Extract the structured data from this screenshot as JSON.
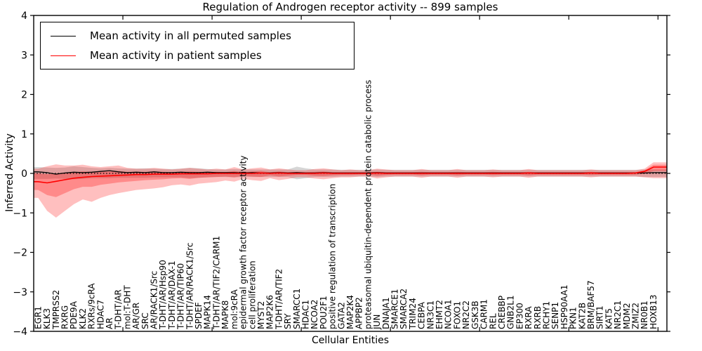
{
  "title": "Regulation of Androgen receptor activity -- 899 samples",
  "legend": {
    "items": [
      {
        "label": "Mean activity in all permuted samples",
        "color": "#000000"
      },
      {
        "label": "Mean activity in patient samples",
        "color": "#ff0000"
      }
    ],
    "position": "upper left"
  },
  "chart_data": {
    "type": "line",
    "title": "Regulation of Androgen receptor activity -- 899 samples",
    "xlabel": "Cellular Entities",
    "ylabel": "Inferred Activity",
    "ylim": [
      -4,
      4
    ],
    "yticks": [
      -4,
      -3,
      -2,
      -1,
      0,
      1,
      2,
      3,
      4
    ],
    "xlim": [
      0,
      71
    ],
    "xticks": [
      10,
      20,
      30,
      40,
      50,
      60,
      70
    ],
    "grid": false,
    "zero_line": {
      "style": "dotted",
      "color": "#000000",
      "y": 0
    },
    "categories": [
      "EGR1",
      "KLK3",
      "TMPRSS2",
      "RXRG",
      "PDE9A",
      "KLK2",
      "RXRs/9cRA",
      "HDAC7",
      "AR",
      "T-DHT/AR",
      "mol:T-DHT",
      "AR/GR",
      "SRC",
      "AR/RACK1/Src",
      "T-DHT/AR/Hsp90",
      "T-DHT/AR/DAX-1",
      "T-DHT/AR/TIP60",
      "T-DHT/AR/RACK1/Src",
      "SPDEF",
      "MAPK14",
      "T-DHT/AR/TIF2/CARM1",
      "MAPK8",
      "mol:9cRA",
      "epidermal growth factor receptor activity",
      "cell proliferation",
      "MYST2",
      "MAP2K6",
      "T-DHT/AR/TIF2",
      "SRY",
      "SMARCC1",
      "HDAC1",
      "NCOA2",
      "POU2F1",
      "positive regulation of transcription",
      "GATA2",
      "MAP2K4",
      "APPBP2",
      "proteasomal ubiquitin-dependent protein catabolic process",
      "JUN",
      "DNAJA1",
      "SMARCE1",
      "SMARCA2",
      "TRIM24",
      "CEBPA",
      "NR3C1",
      "EHMT2",
      "NCOA1",
      "FOXO1",
      "NR2C2",
      "GSK3B",
      "CARM1",
      "REL",
      "CREBBP",
      "GNB2L1",
      "EP300",
      "RXRA",
      "RXRB",
      "RCHY1",
      "SENP1",
      "HSP90AA1",
      "PKN1",
      "KAT2B",
      "BRM/BAF57",
      "SIRT1",
      "KAT5",
      "NR2C1",
      "MDM2",
      "ZMIZ2",
      "NR0B1",
      "HOXB13"
    ],
    "series": [
      {
        "name": "Mean activity in all permuted samples",
        "color": "#000000",
        "width": 1.3,
        "values": [
          0.04,
          0.02,
          -0.02,
          0.01,
          0.03,
          0.02,
          0.03,
          0.05,
          0.07,
          0.04,
          0.02,
          0.03,
          0.02,
          0.04,
          0.02,
          0.02,
          0.03,
          0.02,
          0.02,
          0.03,
          0.02,
          0.02,
          0.02,
          0.01,
          0.02,
          0.01,
          0.01,
          0.02,
          0.01,
          0.02,
          0.01,
          0.01,
          0.02,
          0.01,
          0.01,
          0.01,
          0.01,
          0.01,
          0.02,
          0.01,
          0.01,
          0.01,
          0.01,
          0.01,
          0.01,
          0.01,
          0.01,
          0.01,
          0.01,
          0.01,
          0.01,
          0.01,
          0.01,
          0.01,
          0.01,
          0.01,
          0.01,
          0.01,
          0.01,
          0.01,
          0.01,
          0.01,
          0.01,
          0.01,
          0.01,
          0.01,
          0.01,
          0.01,
          0.01,
          0.02
        ]
      },
      {
        "name": "Mean activity in patient samples",
        "color": "#ff0000",
        "width": 1.6,
        "values": [
          -0.21,
          -0.24,
          -0.2,
          -0.16,
          -0.12,
          -0.1,
          -0.08,
          -0.07,
          -0.06,
          -0.05,
          -0.04,
          -0.03,
          -0.03,
          -0.02,
          -0.02,
          -0.02,
          -0.01,
          -0.01,
          -0.01,
          -0.01,
          0,
          0,
          0,
          0,
          0,
          0.01,
          0,
          0.01,
          0,
          0,
          0,
          0,
          0.01,
          0,
          0,
          0,
          0,
          0,
          0.01,
          0,
          0,
          0,
          0,
          0,
          0,
          0,
          0,
          0,
          0,
          0,
          0,
          0,
          0,
          0,
          0,
          0.01,
          0,
          0,
          0,
          0,
          0,
          0,
          0.01,
          0,
          0,
          0,
          0,
          0.01,
          0.05,
          0.16
        ]
      }
    ],
    "bands": [
      {
        "name": "permuted samples range",
        "color": "rgba(128,128,128,0.32)",
        "upper": [
          0.16,
          0.15,
          0.14,
          0.15,
          0.18,
          0.16,
          0.14,
          0.13,
          0.14,
          0.13,
          0.12,
          0.12,
          0.13,
          0.12,
          0.11,
          0.11,
          0.12,
          0.14,
          0.13,
          0.11,
          0.1,
          0.1,
          0.11,
          0.1,
          0.1,
          0.1,
          0.1,
          0.1,
          0.1,
          0.17,
          0.13,
          0.1,
          0.1,
          0.1,
          0.09,
          0.09,
          0.09,
          0.09,
          0.1,
          0.09,
          0.09,
          0.09,
          0.09,
          0.09,
          0.09,
          0.09,
          0.09,
          0.09,
          0.09,
          0.09,
          0.09,
          0.09,
          0.09,
          0.09,
          0.09,
          0.09,
          0.09,
          0.09,
          0.09,
          0.09,
          0.09,
          0.09,
          0.09,
          0.09,
          0.09,
          0.09,
          0.09,
          0.09,
          0.1,
          0.1
        ],
        "lower": [
          -0.14,
          -0.14,
          -0.13,
          -0.14,
          -0.15,
          -0.14,
          -0.12,
          -0.12,
          -0.12,
          -0.11,
          -0.11,
          -0.11,
          -0.11,
          -0.1,
          -0.1,
          -0.1,
          -0.1,
          -0.12,
          -0.11,
          -0.1,
          -0.09,
          -0.09,
          -0.1,
          -0.09,
          -0.09,
          -0.09,
          -0.09,
          -0.09,
          -0.09,
          -0.15,
          -0.12,
          -0.09,
          -0.09,
          -0.09,
          -0.08,
          -0.08,
          -0.08,
          -0.08,
          -0.09,
          -0.08,
          -0.08,
          -0.08,
          -0.08,
          -0.08,
          -0.08,
          -0.08,
          -0.08,
          -0.08,
          -0.08,
          -0.08,
          -0.08,
          -0.08,
          -0.08,
          -0.08,
          -0.08,
          -0.08,
          -0.08,
          -0.08,
          -0.08,
          -0.08,
          -0.08,
          -0.08,
          -0.08,
          -0.08,
          -0.08,
          -0.08,
          -0.08,
          -0.08,
          -0.09,
          -0.09
        ]
      },
      {
        "name": "patient samples outer range",
        "color": "rgba(255,0,0,0.25)",
        "upper": [
          0.12,
          0.18,
          0.23,
          0.2,
          0.2,
          0.22,
          0.18,
          0.16,
          0.18,
          0.2,
          0.14,
          0.12,
          0.12,
          0.14,
          0.12,
          0.1,
          0.12,
          0.14,
          0.12,
          0.1,
          0.12,
          0.1,
          0.16,
          0.1,
          0.13,
          0.15,
          0.1,
          0.13,
          0.1,
          0.08,
          0.08,
          0.11,
          0.13,
          0.1,
          0.08,
          0.1,
          0.08,
          0.08,
          0.12,
          0.1,
          0.08,
          0.08,
          0.08,
          0.11,
          0.08,
          0.08,
          0.08,
          0.11,
          0.08,
          0.08,
          0.08,
          0.1,
          0.08,
          0.08,
          0.08,
          0.11,
          0.08,
          0.08,
          0.08,
          0.08,
          0.08,
          0.08,
          0.1,
          0.08,
          0.08,
          0.08,
          0.08,
          0.08,
          0.12,
          0.28
        ],
        "lower": [
          -0.62,
          -0.95,
          -1.12,
          -0.95,
          -0.78,
          -0.66,
          -0.72,
          -0.62,
          -0.55,
          -0.5,
          -0.46,
          -0.42,
          -0.4,
          -0.38,
          -0.35,
          -0.3,
          -0.28,
          -0.31,
          -0.26,
          -0.24,
          -0.22,
          -0.18,
          -0.21,
          -0.14,
          -0.17,
          -0.19,
          -0.12,
          -0.17,
          -0.14,
          -0.1,
          -0.1,
          -0.13,
          -0.15,
          -0.12,
          -0.1,
          -0.1,
          -0.08,
          -0.08,
          -0.13,
          -0.1,
          -0.08,
          -0.08,
          -0.08,
          -0.11,
          -0.08,
          -0.08,
          -0.08,
          -0.11,
          -0.08,
          -0.08,
          -0.08,
          -0.1,
          -0.08,
          -0.08,
          -0.08,
          -0.11,
          -0.08,
          -0.08,
          -0.08,
          -0.08,
          -0.08,
          -0.08,
          -0.1,
          -0.08,
          -0.08,
          -0.08,
          -0.08,
          -0.08,
          -0.1,
          -0.12
        ]
      },
      {
        "name": "patient samples inner range",
        "color": "rgba(255,0,0,0.28)",
        "upper": [
          0.0,
          -0.02,
          0.0,
          0.02,
          0.03,
          0.05,
          0.04,
          0.04,
          0.05,
          0.06,
          0.04,
          0.04,
          0.04,
          0.05,
          0.04,
          0.03,
          0.04,
          0.05,
          0.04,
          0.03,
          0.04,
          0.03,
          0.06,
          0.03,
          0.05,
          0.06,
          0.03,
          0.05,
          0.03,
          0.03,
          0.03,
          0.04,
          0.05,
          0.03,
          0.03,
          0.03,
          0.03,
          0.03,
          0.04,
          0.03,
          0.03,
          0.03,
          0.03,
          0.04,
          0.03,
          0.03,
          0.03,
          0.04,
          0.03,
          0.03,
          0.03,
          0.04,
          0.03,
          0.03,
          0.03,
          0.04,
          0.03,
          0.03,
          0.03,
          0.03,
          0.03,
          0.03,
          0.04,
          0.03,
          0.03,
          0.03,
          0.03,
          0.03,
          0.08,
          0.22
        ],
        "lower": [
          -0.42,
          -0.55,
          -0.6,
          -0.5,
          -0.4,
          -0.34,
          -0.34,
          -0.29,
          -0.26,
          -0.23,
          -0.21,
          -0.19,
          -0.17,
          -0.16,
          -0.15,
          -0.13,
          -0.12,
          -0.14,
          -0.11,
          -0.1,
          -0.09,
          -0.08,
          -0.1,
          -0.06,
          -0.08,
          -0.09,
          -0.05,
          -0.08,
          -0.06,
          -0.04,
          -0.04,
          -0.06,
          -0.07,
          -0.05,
          -0.04,
          -0.04,
          -0.03,
          -0.03,
          -0.06,
          -0.04,
          -0.03,
          -0.03,
          -0.03,
          -0.05,
          -0.03,
          -0.03,
          -0.03,
          -0.05,
          -0.03,
          -0.03,
          -0.03,
          -0.04,
          -0.03,
          -0.03,
          -0.03,
          -0.05,
          -0.03,
          -0.03,
          -0.03,
          -0.03,
          -0.03,
          -0.03,
          -0.04,
          -0.03,
          -0.03,
          -0.03,
          -0.03,
          -0.03,
          -0.01,
          0.06
        ]
      }
    ]
  }
}
